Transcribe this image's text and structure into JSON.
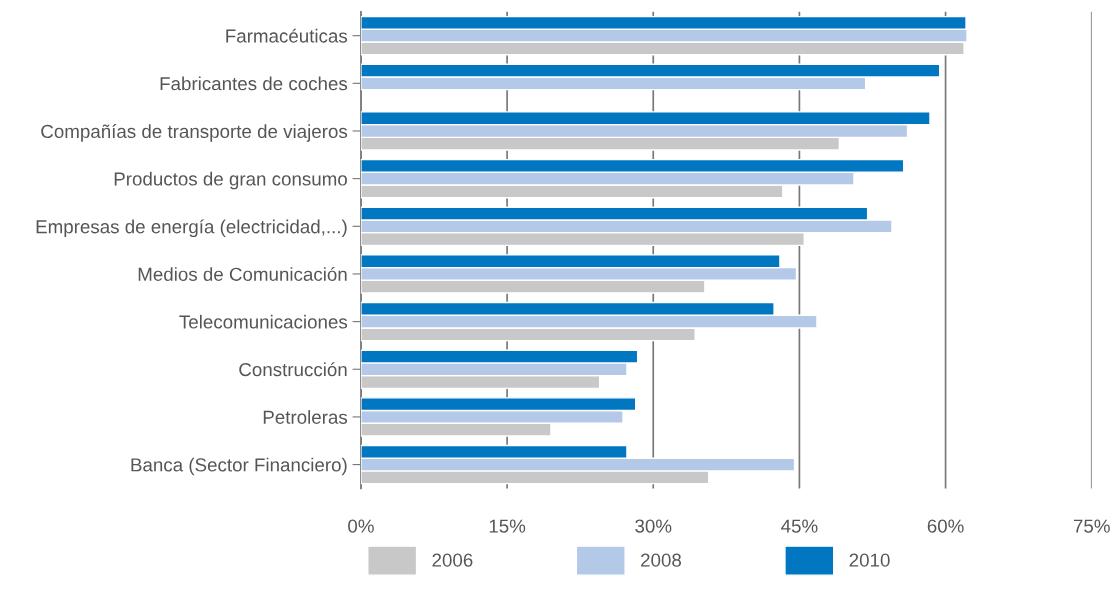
{
  "chart_data": {
    "type": "bar",
    "orientation": "horizontal",
    "categories": [
      "Farmacéuticas",
      "Fabricantes de coches",
      "Compañías de transporte de viajeros",
      "Productos de gran consumo",
      "Empresas de energía (electricidad,...)",
      "Medios de Comunicación",
      "Telecomunicaciones",
      "Construcción",
      "Petroleras",
      "Banca (Sector Financiero)"
    ],
    "series": [
      {
        "name": "2006",
        "color": "#c8c8c8",
        "values": [
          61.9,
          null,
          49.1,
          43.3,
          45.5,
          35.3,
          34.3,
          24.5,
          19.5,
          35.7
        ]
      },
      {
        "name": "2008",
        "color": "#b4c8e8",
        "values": [
          62.2,
          51.8,
          56.1,
          50.6,
          54.5,
          44.7,
          46.8,
          27.3,
          26.9,
          44.5
        ]
      },
      {
        "name": "2010",
        "color": "#0077c0",
        "values": [
          62.1,
          59.4,
          58.4,
          55.7,
          52.0,
          43.0,
          42.4,
          28.4,
          28.2,
          27.3
        ]
      }
    ],
    "xlim": [
      0,
      75
    ],
    "xticks": [
      {
        "value": 0,
        "label": "0%"
      },
      {
        "value": 15,
        "label": "15%"
      },
      {
        "value": 30,
        "label": "30%"
      },
      {
        "value": 45,
        "label": "45%"
      },
      {
        "value": 60,
        "label": "60%"
      },
      {
        "value": 75,
        "label": "75%"
      }
    ],
    "grid": "x",
    "legend": "bottom"
  }
}
